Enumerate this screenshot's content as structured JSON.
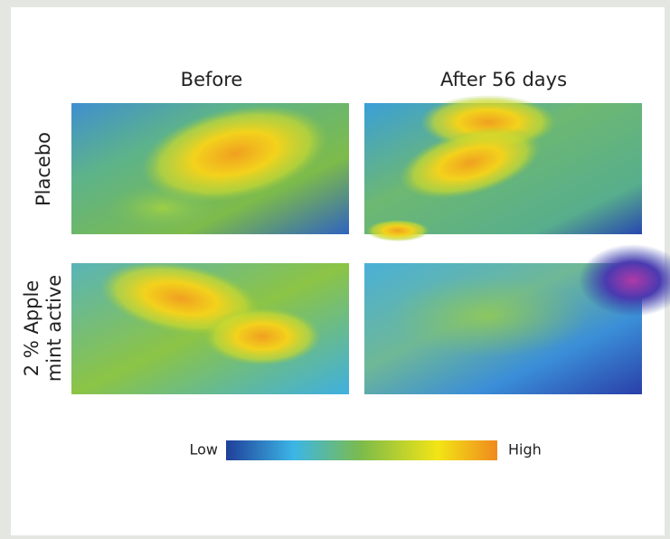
{
  "columns": [
    "Before",
    "After 56 days"
  ],
  "rows": [
    [
      "Placebo"
    ],
    [
      "2 % Apple",
      "mint active"
    ]
  ],
  "colorbar": {
    "low": "Low",
    "high": "High"
  }
}
